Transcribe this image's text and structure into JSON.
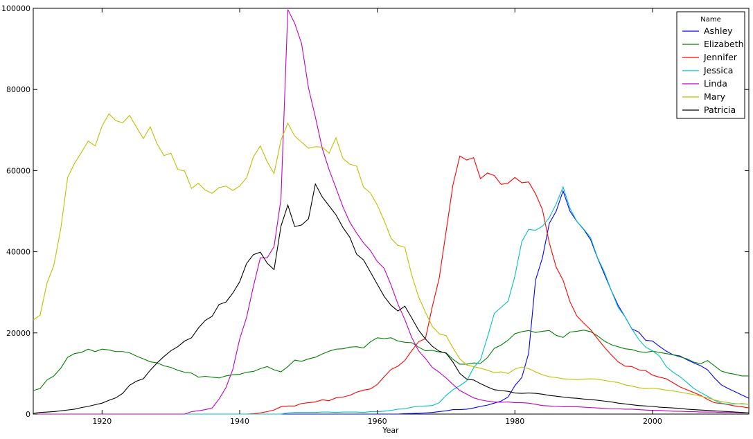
{
  "chart_data": {
    "type": "line",
    "xlabel": "Year",
    "ylabel": "",
    "xlim": [
      1910,
      2014
    ],
    "ylim": [
      0,
      100000
    ],
    "xticks": [
      1920,
      1940,
      1960,
      1980,
      2000
    ],
    "xtick_labels": [
      "1920",
      "1940",
      "1960",
      "1980",
      "2000"
    ],
    "yticks": [
      0,
      20000,
      40000,
      60000,
      80000,
      100000
    ],
    "ytick_labels": [
      "0",
      "20000",
      "40000",
      "60000",
      "80000",
      "100000"
    ],
    "grid": false,
    "legend": {
      "title": "Name",
      "placement": "top-right"
    },
    "x": [
      1910,
      1911,
      1912,
      1913,
      1914,
      1915,
      1916,
      1917,
      1918,
      1919,
      1920,
      1921,
      1922,
      1923,
      1924,
      1925,
      1926,
      1927,
      1928,
      1929,
      1930,
      1931,
      1932,
      1933,
      1934,
      1935,
      1936,
      1937,
      1938,
      1939,
      1940,
      1941,
      1942,
      1943,
      1944,
      1945,
      1946,
      1947,
      1948,
      1949,
      1950,
      1951,
      1952,
      1953,
      1954,
      1955,
      1956,
      1957,
      1958,
      1959,
      1960,
      1961,
      1962,
      1963,
      1964,
      1965,
      1966,
      1967,
      1968,
      1969,
      1970,
      1971,
      1972,
      1973,
      1974,
      1975,
      1976,
      1977,
      1978,
      1979,
      1980,
      1981,
      1982,
      1983,
      1984,
      1985,
      1986,
      1987,
      1988,
      1989,
      1990,
      1991,
      1992,
      1993,
      1994,
      1995,
      1996,
      1997,
      1998,
      1999,
      2000,
      2001,
      2002,
      2003,
      2004,
      2005,
      2006,
      2007,
      2008,
      2009,
      2010,
      2011,
      2012,
      2013,
      2014
    ],
    "series": [
      {
        "name": "Ashley",
        "color": "#0000ff",
        "values": [
          0,
          0,
          0,
          0,
          0,
          0,
          0,
          0,
          0,
          0,
          0,
          0,
          0,
          0,
          0,
          0,
          0,
          0,
          0,
          0,
          0,
          0,
          0,
          0,
          0,
          0,
          0,
          0,
          0,
          0,
          0,
          0,
          0,
          0,
          0,
          0,
          0,
          0,
          0,
          0,
          0,
          0,
          0,
          0,
          0,
          0,
          0,
          0,
          0,
          0,
          0,
          0,
          0,
          0,
          100,
          150,
          200,
          300,
          400,
          600,
          800,
          1100,
          1100,
          1200,
          1500,
          1900,
          2200,
          2700,
          3200,
          4200,
          7000,
          9000,
          15000,
          33000,
          38500,
          47000,
          50000,
          55000,
          50000,
          47500,
          45500,
          43000,
          38500,
          34500,
          30500,
          26800,
          24000,
          21000,
          20200,
          18200,
          18000,
          16700,
          15500,
          14600,
          14300,
          13400,
          12600,
          11900,
          10900,
          8900,
          7200,
          6300,
          5500,
          4700,
          3900
        ]
      },
      {
        "name": "Elizabeth",
        "color": "#008000",
        "values": [
          5800,
          6300,
          8400,
          9400,
          11300,
          14000,
          14900,
          15200,
          16000,
          15400,
          16000,
          15800,
          15400,
          15400,
          15100,
          14300,
          13600,
          12900,
          12600,
          11900,
          11500,
          10800,
          10300,
          10100,
          9100,
          9300,
          9100,
          8900,
          9400,
          9700,
          9800,
          10300,
          10500,
          11200,
          11700,
          10900,
          10400,
          11700,
          13300,
          13000,
          13600,
          14000,
          14800,
          15500,
          16000,
          16100,
          16500,
          16600,
          16300,
          17800,
          18800,
          18600,
          18800,
          18000,
          17700,
          17600,
          16500,
          15600,
          15700,
          15300,
          15100,
          13500,
          12300,
          12300,
          12600,
          12500,
          13900,
          16200,
          17000,
          18200,
          19800,
          20300,
          20600,
          20100,
          20400,
          20600,
          19400,
          18900,
          20200,
          20400,
          20700,
          20300,
          19300,
          18000,
          17100,
          16600,
          16100,
          15900,
          15400,
          15200,
          15500,
          15200,
          14900,
          14600,
          14100,
          13600,
          12800,
          12400,
          13200,
          11900,
          10600,
          10100,
          9800,
          9400,
          9400
        ]
      },
      {
        "name": "Jennifer",
        "color": "#ff0000",
        "values": [
          0,
          0,
          0,
          0,
          0,
          0,
          0,
          0,
          0,
          0,
          0,
          0,
          0,
          0,
          0,
          0,
          0,
          0,
          0,
          0,
          0,
          0,
          0,
          0,
          0,
          0,
          0,
          0,
          0,
          0,
          0,
          0,
          100,
          300,
          600,
          1000,
          1800,
          2000,
          2000,
          2600,
          2800,
          3000,
          3500,
          3300,
          4000,
          4200,
          4600,
          5400,
          5900,
          6200,
          7300,
          9200,
          11000,
          11800,
          13200,
          15600,
          17800,
          18600,
          26500,
          33500,
          45000,
          56500,
          63600,
          62600,
          63200,
          58000,
          59400,
          58800,
          56600,
          56900,
          58300,
          57000,
          57200,
          54300,
          50400,
          42200,
          36200,
          33000,
          27700,
          24200,
          22400,
          20800,
          18600,
          16500,
          14600,
          12900,
          11800,
          11700,
          10900,
          10700,
          9600,
          9100,
          8700,
          7700,
          6700,
          6000,
          5300,
          4600,
          3600,
          2800,
          2600,
          2300,
          2000,
          1800,
          1500
        ]
      },
      {
        "name": "Jessica",
        "color": "#00bfbf",
        "values": [
          0,
          0,
          0,
          0,
          0,
          0,
          0,
          0,
          0,
          0,
          0,
          0,
          0,
          0,
          0,
          0,
          0,
          0,
          0,
          0,
          0,
          0,
          0,
          0,
          0,
          0,
          0,
          0,
          0,
          0,
          0,
          0,
          0,
          0,
          0,
          0,
          0,
          300,
          400,
          400,
          400,
          400,
          500,
          500,
          400,
          500,
          500,
          500,
          400,
          600,
          600,
          700,
          900,
          1200,
          1300,
          1700,
          1900,
          2000,
          2100,
          2800,
          4600,
          6000,
          7000,
          8200,
          11400,
          13400,
          18900,
          24800,
          26300,
          27800,
          34000,
          42500,
          45500,
          45300,
          46300,
          48400,
          51800,
          56000,
          50700,
          47500,
          45600,
          43500,
          38600,
          35000,
          30500,
          26300,
          24000,
          21000,
          18400,
          16500,
          15600,
          14300,
          11700,
          10300,
          9200,
          7800,
          6300,
          5300,
          4400,
          3400,
          2700,
          2400,
          2500,
          2600,
          2400
        ]
      },
      {
        "name": "Linda",
        "color": "#bf00bf",
        "values": [
          0,
          0,
          0,
          0,
          0,
          0,
          0,
          0,
          0,
          0,
          0,
          0,
          0,
          0,
          0,
          0,
          0,
          0,
          0,
          0,
          0,
          0,
          0,
          600,
          800,
          1100,
          1500,
          3700,
          6500,
          11000,
          18500,
          23800,
          31500,
          38500,
          38500,
          41300,
          53000,
          99700,
          96300,
          91300,
          80400,
          73200,
          65500,
          60200,
          55700,
          51100,
          47300,
          44600,
          42200,
          40300,
          37600,
          35900,
          31800,
          27100,
          23300,
          18900,
          15600,
          13700,
          11500,
          10300,
          8900,
          7300,
          5800,
          4900,
          4000,
          3500,
          3200,
          3000,
          2900,
          3000,
          2800,
          2800,
          2700,
          2400,
          2100,
          2000,
          1900,
          1800,
          1800,
          1800,
          1700,
          1600,
          1500,
          1400,
          1300,
          1300,
          1200,
          1200,
          1100,
          1000,
          900,
          900,
          800,
          700,
          700,
          600,
          600,
          500,
          500,
          500,
          400,
          400,
          400,
          300,
          300
        ]
      },
      {
        "name": "Mary",
        "color": "#bfbf00",
        "values": [
          23200,
          24400,
          32300,
          36700,
          45700,
          58300,
          61800,
          64500,
          67300,
          66100,
          71000,
          74000,
          72300,
          71800,
          73600,
          70700,
          67900,
          70800,
          66600,
          63700,
          64300,
          60300,
          59900,
          55600,
          56900,
          55200,
          54400,
          55800,
          56200,
          55100,
          56200,
          58200,
          63400,
          66100,
          62200,
          59300,
          67500,
          71700,
          68500,
          67000,
          65500,
          65900,
          65800,
          64300,
          68100,
          63000,
          61600,
          61100,
          55900,
          54500,
          51500,
          47700,
          43300,
          41600,
          41100,
          34300,
          28900,
          25100,
          21600,
          19800,
          19300,
          16300,
          13600,
          12100,
          11700,
          11300,
          10800,
          10200,
          10400,
          10000,
          11100,
          11600,
          11200,
          10400,
          9700,
          9200,
          9000,
          8700,
          8600,
          8500,
          8600,
          8700,
          8600,
          8300,
          8000,
          7800,
          7200,
          6900,
          6500,
          6300,
          6400,
          6200,
          5900,
          5700,
          5400,
          5100,
          4800,
          4400,
          4000,
          3500,
          3100,
          2800,
          2600,
          2500,
          2400
        ]
      },
      {
        "name": "Patricia",
        "color": "#000000",
        "values": [
          200,
          400,
          500,
          600,
          800,
          1000,
          1200,
          1600,
          1900,
          2300,
          2700,
          3400,
          4000,
          5100,
          7100,
          8100,
          8700,
          10800,
          12600,
          14200,
          15600,
          16600,
          18000,
          18800,
          21200,
          23100,
          24100,
          27000,
          27600,
          29800,
          32600,
          37100,
          39300,
          39900,
          37200,
          35600,
          46300,
          51500,
          46200,
          46600,
          48100,
          56700,
          53500,
          51300,
          49100,
          46000,
          43600,
          39400,
          38000,
          35000,
          32000,
          29000,
          26800,
          25400,
          26600,
          23700,
          20700,
          18500,
          16700,
          15500,
          15000,
          12800,
          10000,
          8600,
          8400,
          7500,
          6700,
          6000,
          5800,
          5600,
          5200,
          5100,
          5200,
          5100,
          4900,
          4600,
          4400,
          4200,
          4000,
          3900,
          3700,
          3600,
          3400,
          3200,
          3000,
          2700,
          2500,
          2300,
          2100,
          2000,
          1900,
          1700,
          1600,
          1500,
          1400,
          1200,
          1100,
          1000,
          900,
          800,
          700,
          600,
          500,
          400,
          300
        ]
      }
    ]
  }
}
